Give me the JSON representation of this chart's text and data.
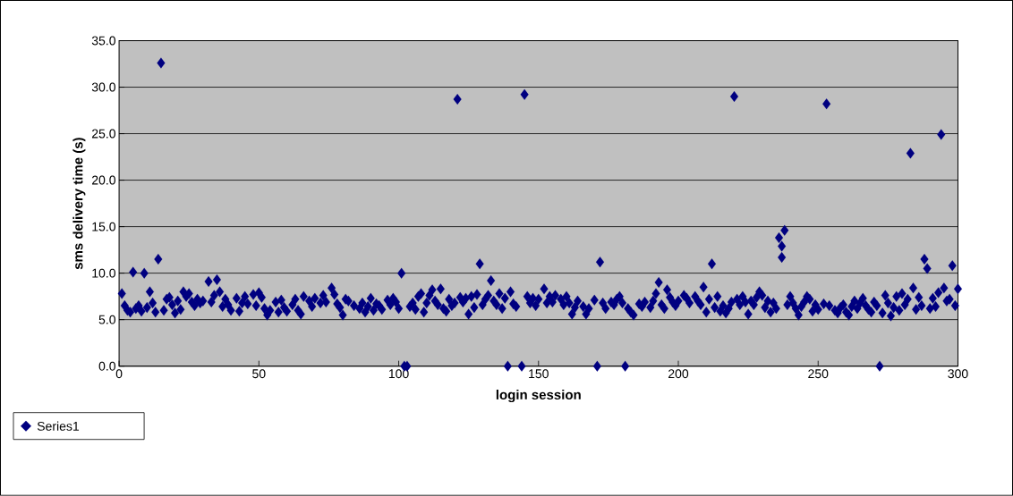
{
  "chart_data": {
    "type": "scatter",
    "xlabel": "login session",
    "ylabel": "sms delivery time (s)",
    "xlim": [
      0,
      300
    ],
    "ylim": [
      0,
      35
    ],
    "xticks": [
      0,
      50,
      100,
      150,
      200,
      250,
      300
    ],
    "yticks": [
      {
        "value": 0,
        "label": "0.0"
      },
      {
        "value": 5,
        "label": "5.0"
      },
      {
        "value": 10,
        "label": "10.0"
      },
      {
        "value": 15,
        "label": "15.0"
      },
      {
        "value": 20,
        "label": "20.0"
      },
      {
        "value": 25,
        "label": "25.0"
      },
      {
        "value": 30,
        "label": "30.0"
      },
      {
        "value": 35,
        "label": "35.0"
      }
    ],
    "grid": "y",
    "legend": "bottom left",
    "marker": "diamond",
    "series": [
      {
        "name": "Series1",
        "color": "#000080",
        "x": [
          1,
          2,
          3,
          4,
          5,
          6,
          7,
          8,
          9,
          10,
          11,
          12,
          13,
          14,
          15,
          16,
          17,
          18,
          19,
          20,
          21,
          22,
          23,
          24,
          25,
          26,
          27,
          28,
          29,
          30,
          32,
          33,
          34,
          35,
          36,
          37,
          38,
          39,
          40,
          42,
          43,
          44,
          45,
          46,
          48,
          49,
          50,
          51,
          52,
          53,
          54,
          56,
          57,
          58,
          59,
          60,
          62,
          63,
          64,
          65,
          66,
          68,
          69,
          70,
          72,
          73,
          74,
          76,
          77,
          78,
          79,
          80,
          81,
          82,
          84,
          86,
          87,
          88,
          89,
          90,
          91,
          92,
          93,
          94,
          96,
          97,
          98,
          99,
          100,
          101,
          102,
          103,
          104,
          105,
          106,
          107,
          108,
          109,
          110,
          111,
          112,
          113,
          114,
          115,
          116,
          117,
          118,
          119,
          120,
          121,
          122,
          123,
          124,
          125,
          126,
          127,
          128,
          129,
          130,
          131,
          132,
          133,
          134,
          135,
          136,
          137,
          138,
          139,
          140,
          141,
          142,
          144,
          145,
          146,
          147,
          148,
          149,
          150,
          152,
          153,
          154,
          155,
          156,
          158,
          159,
          160,
          161,
          162,
          163,
          164,
          166,
          167,
          168,
          170,
          171,
          172,
          173,
          174,
          176,
          177,
          178,
          179,
          180,
          181,
          182,
          183,
          184,
          186,
          187,
          188,
          190,
          191,
          192,
          193,
          194,
          195,
          196,
          197,
          198,
          199,
          200,
          202,
          203,
          204,
          206,
          207,
          208,
          209,
          210,
          211,
          212,
          213,
          214,
          215,
          216,
          217,
          218,
          219,
          220,
          221,
          222,
          223,
          224,
          225,
          226,
          227,
          228,
          229,
          230,
          231,
          232,
          233,
          234,
          235,
          236,
          237,
          237,
          238,
          239,
          240,
          241,
          242,
          243,
          244,
          245,
          246,
          247,
          248,
          249,
          250,
          252,
          253,
          254,
          256,
          257,
          258,
          259,
          260,
          261,
          262,
          263,
          264,
          265,
          266,
          267,
          268,
          269,
          270,
          271,
          272,
          273,
          274,
          275,
          276,
          277,
          278,
          279,
          280,
          281,
          282,
          283,
          284,
          285,
          286,
          287,
          288,
          289,
          290,
          291,
          292,
          293,
          294,
          295,
          296,
          297,
          298,
          299,
          300
        ],
        "values": [
          7.8,
          6.5,
          6.0,
          5.8,
          10.1,
          6.2,
          6.5,
          5.9,
          10.0,
          6.3,
          8.0,
          6.8,
          5.8,
          11.5,
          32.6,
          6.0,
          7.2,
          7.4,
          6.6,
          5.7,
          7.0,
          6.1,
          8.0,
          7.5,
          7.8,
          6.9,
          6.5,
          7.2,
          6.8,
          7.0,
          9.1,
          6.9,
          7.6,
          9.3,
          8.0,
          6.4,
          7.2,
          6.6,
          6.0,
          7.3,
          5.9,
          6.8,
          7.5,
          6.7,
          7.7,
          6.5,
          7.9,
          7.4,
          6.2,
          5.5,
          6.0,
          6.9,
          5.8,
          7.1,
          6.3,
          5.9,
          6.6,
          7.2,
          6.0,
          5.6,
          7.5,
          7.0,
          6.4,
          7.3,
          6.8,
          7.6,
          6.9,
          8.4,
          7.7,
          6.7,
          6.3,
          5.5,
          7.2,
          7.0,
          6.5,
          6.2,
          6.8,
          5.8,
          6.4,
          7.3,
          6.0,
          6.7,
          6.5,
          6.1,
          7.1,
          6.6,
          7.3,
          6.9,
          6.2,
          10.0,
          0,
          0,
          6.4,
          6.8,
          6.1,
          7.5,
          7.8,
          5.8,
          6.8,
          7.6,
          8.2,
          7.0,
          6.6,
          8.3,
          6.2,
          5.9,
          7.2,
          6.5,
          6.8,
          28.7,
          7.4,
          6.9,
          7.3,
          5.6,
          7.5,
          6.3,
          7.7,
          11.0,
          6.6,
          7.2,
          7.6,
          9.2,
          7.0,
          6.6,
          7.8,
          6.2,
          7.3,
          0,
          8.0,
          6.7,
          6.4,
          0,
          29.2,
          7.5,
          6.8,
          7.3,
          6.5,
          7.2,
          8.3,
          6.8,
          7.5,
          6.9,
          7.6,
          7.2,
          6.6,
          7.5,
          6.8,
          5.6,
          6.3,
          7.0,
          6.4,
          5.6,
          6.2,
          7.1,
          0,
          11.2,
          6.8,
          6.2,
          6.9,
          6.6,
          7.2,
          7.5,
          6.8,
          0,
          6.2,
          5.8,
          5.5,
          6.7,
          6.4,
          6.9,
          6.3,
          7.0,
          7.8,
          9.0,
          6.6,
          6.2,
          8.2,
          7.4,
          6.9,
          6.5,
          7.0,
          7.6,
          7.3,
          6.8,
          7.5,
          7.0,
          6.6,
          8.5,
          5.8,
          7.2,
          11.0,
          6.3,
          7.5,
          5.9,
          6.5,
          5.7,
          6.2,
          6.9,
          29.0,
          7.2,
          6.6,
          7.5,
          6.9,
          5.6,
          7.0,
          6.6,
          7.4,
          8.0,
          7.6,
          6.3,
          7.0,
          5.8,
          6.8,
          6.2,
          13.8,
          12.9,
          11.7,
          14.6,
          6.6,
          7.5,
          6.8,
          6.2,
          5.5,
          6.4,
          6.9,
          7.5,
          7.2,
          5.9,
          6.6,
          6.1,
          6.7,
          28.2,
          6.5,
          6.0,
          5.7,
          6.3,
          6.6,
          5.8,
          5.5,
          6.4,
          7.0,
          6.2,
          6.8,
          7.3,
          6.5,
          6.1,
          5.8,
          6.9,
          6.5,
          0,
          5.7,
          7.6,
          6.8,
          5.4,
          6.3,
          7.5,
          6.0,
          7.8,
          6.6,
          7.2,
          22.9,
          8.4,
          6.1,
          7.4,
          6.5,
          11.5,
          10.5,
          6.2,
          7.3,
          6.4,
          7.9,
          24.9,
          8.4,
          7.0,
          7.2,
          10.8,
          6.5,
          8.3
        ]
      }
    ]
  }
}
